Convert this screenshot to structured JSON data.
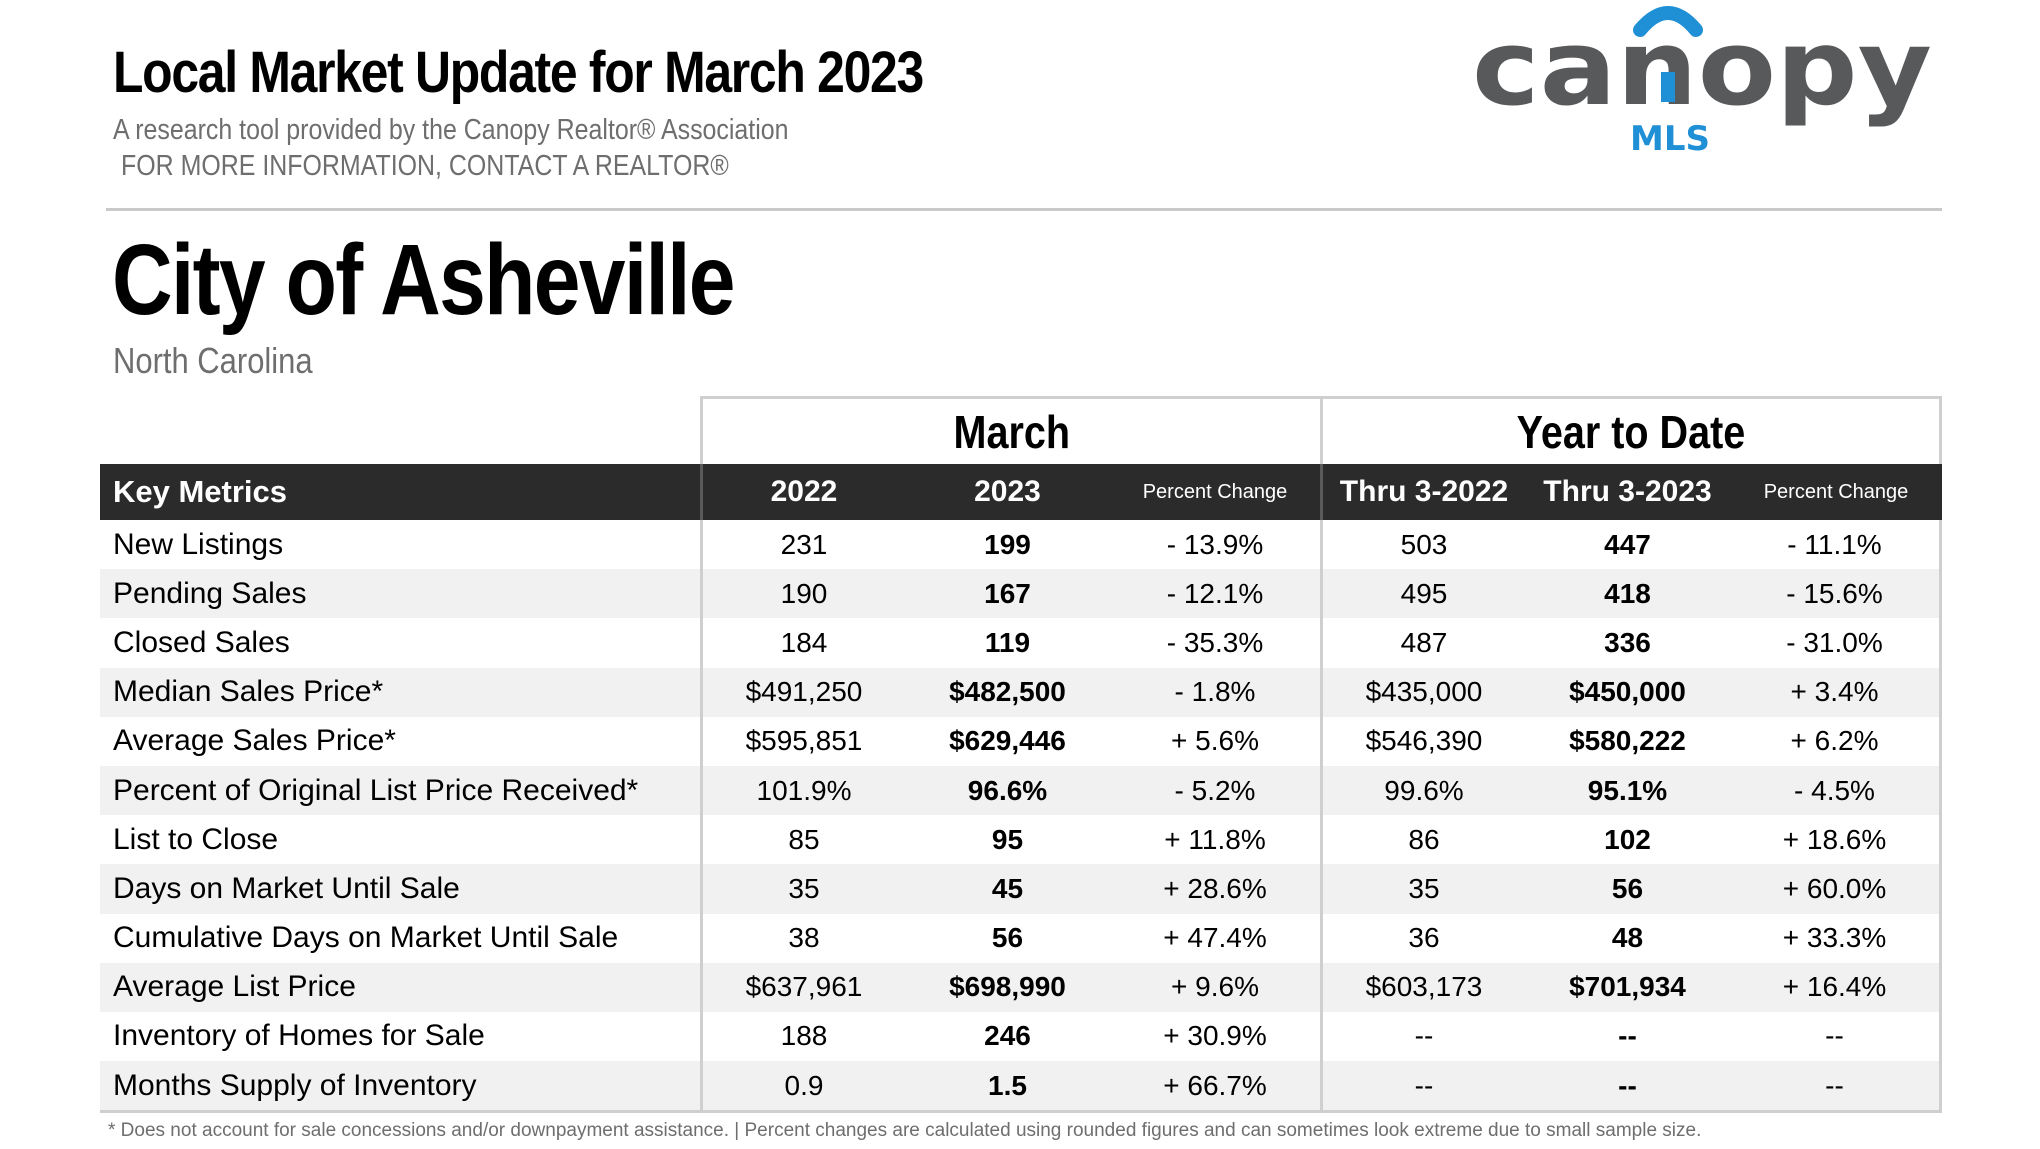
{
  "header": {
    "title": "Local Market Update for March 2023",
    "subtitle": "A research tool provided by the Canopy Realtor® Association",
    "contact": "FOR MORE INFORMATION, CONTACT A REALTOR®"
  },
  "logo": {
    "wordmark": "canopy",
    "sub": "MLS",
    "colors": {
      "gray": "#58595b",
      "blue": "#1f8fd6"
    }
  },
  "location": {
    "city": "City of Asheville",
    "state": "North Carolina"
  },
  "table": {
    "groups": [
      "March",
      "Year to Date"
    ],
    "headers": [
      "Key Metrics",
      "2022",
      "2023",
      "Percent Change",
      "Thru 3-2022",
      "Thru 3-2023",
      "Percent Change"
    ],
    "rows": [
      {
        "metric": "New Listings",
        "m2022": "231",
        "m2023": "199",
        "mpct": "- 13.9%",
        "y2022": "503",
        "y2023": "447",
        "ypct": "- 11.1%"
      },
      {
        "metric": "Pending Sales",
        "m2022": "190",
        "m2023": "167",
        "mpct": "- 12.1%",
        "y2022": "495",
        "y2023": "418",
        "ypct": "- 15.6%"
      },
      {
        "metric": "Closed Sales",
        "m2022": "184",
        "m2023": "119",
        "mpct": "- 35.3%",
        "y2022": "487",
        "y2023": "336",
        "ypct": "- 31.0%"
      },
      {
        "metric": "Median Sales Price*",
        "m2022": "$491,250",
        "m2023": "$482,500",
        "mpct": "- 1.8%",
        "y2022": "$435,000",
        "y2023": "$450,000",
        "ypct": "+ 3.4%"
      },
      {
        "metric": "Average Sales Price*",
        "m2022": "$595,851",
        "m2023": "$629,446",
        "mpct": "+ 5.6%",
        "y2022": "$546,390",
        "y2023": "$580,222",
        "ypct": "+ 6.2%"
      },
      {
        "metric": "Percent of Original List Price Received*",
        "m2022": "101.9%",
        "m2023": "96.6%",
        "mpct": "- 5.2%",
        "y2022": "99.6%",
        "y2023": "95.1%",
        "ypct": "- 4.5%"
      },
      {
        "metric": "List to Close",
        "m2022": "85",
        "m2023": "95",
        "mpct": "+ 11.8%",
        "y2022": "86",
        "y2023": "102",
        "ypct": "+ 18.6%"
      },
      {
        "metric": "Days on Market Until Sale",
        "m2022": "35",
        "m2023": "45",
        "mpct": "+ 28.6%",
        "y2022": "35",
        "y2023": "56",
        "ypct": "+ 60.0%"
      },
      {
        "metric": "Cumulative Days on Market Until Sale",
        "m2022": "38",
        "m2023": "56",
        "mpct": "+ 47.4%",
        "y2022": "36",
        "y2023": "48",
        "ypct": "+ 33.3%"
      },
      {
        "metric": "Average List Price",
        "m2022": "$637,961",
        "m2023": "$698,990",
        "mpct": "+ 9.6%",
        "y2022": "$603,173",
        "y2023": "$701,934",
        "ypct": "+ 16.4%"
      },
      {
        "metric": "Inventory of Homes for Sale",
        "m2022": "188",
        "m2023": "246",
        "mpct": "+ 30.9%",
        "y2022": "--",
        "y2023": "--",
        "ypct": "--"
      },
      {
        "metric": "Months Supply of Inventory",
        "m2022": "0.9",
        "m2023": "1.5",
        "mpct": "+ 66.7%",
        "y2022": "--",
        "y2023": "--",
        "ypct": "--"
      }
    ]
  },
  "footnote": "* Does not account for sale concessions and/or downpayment assistance.  |  Percent changes are calculated using rounded figures and can sometimes look extreme due to small sample size."
}
